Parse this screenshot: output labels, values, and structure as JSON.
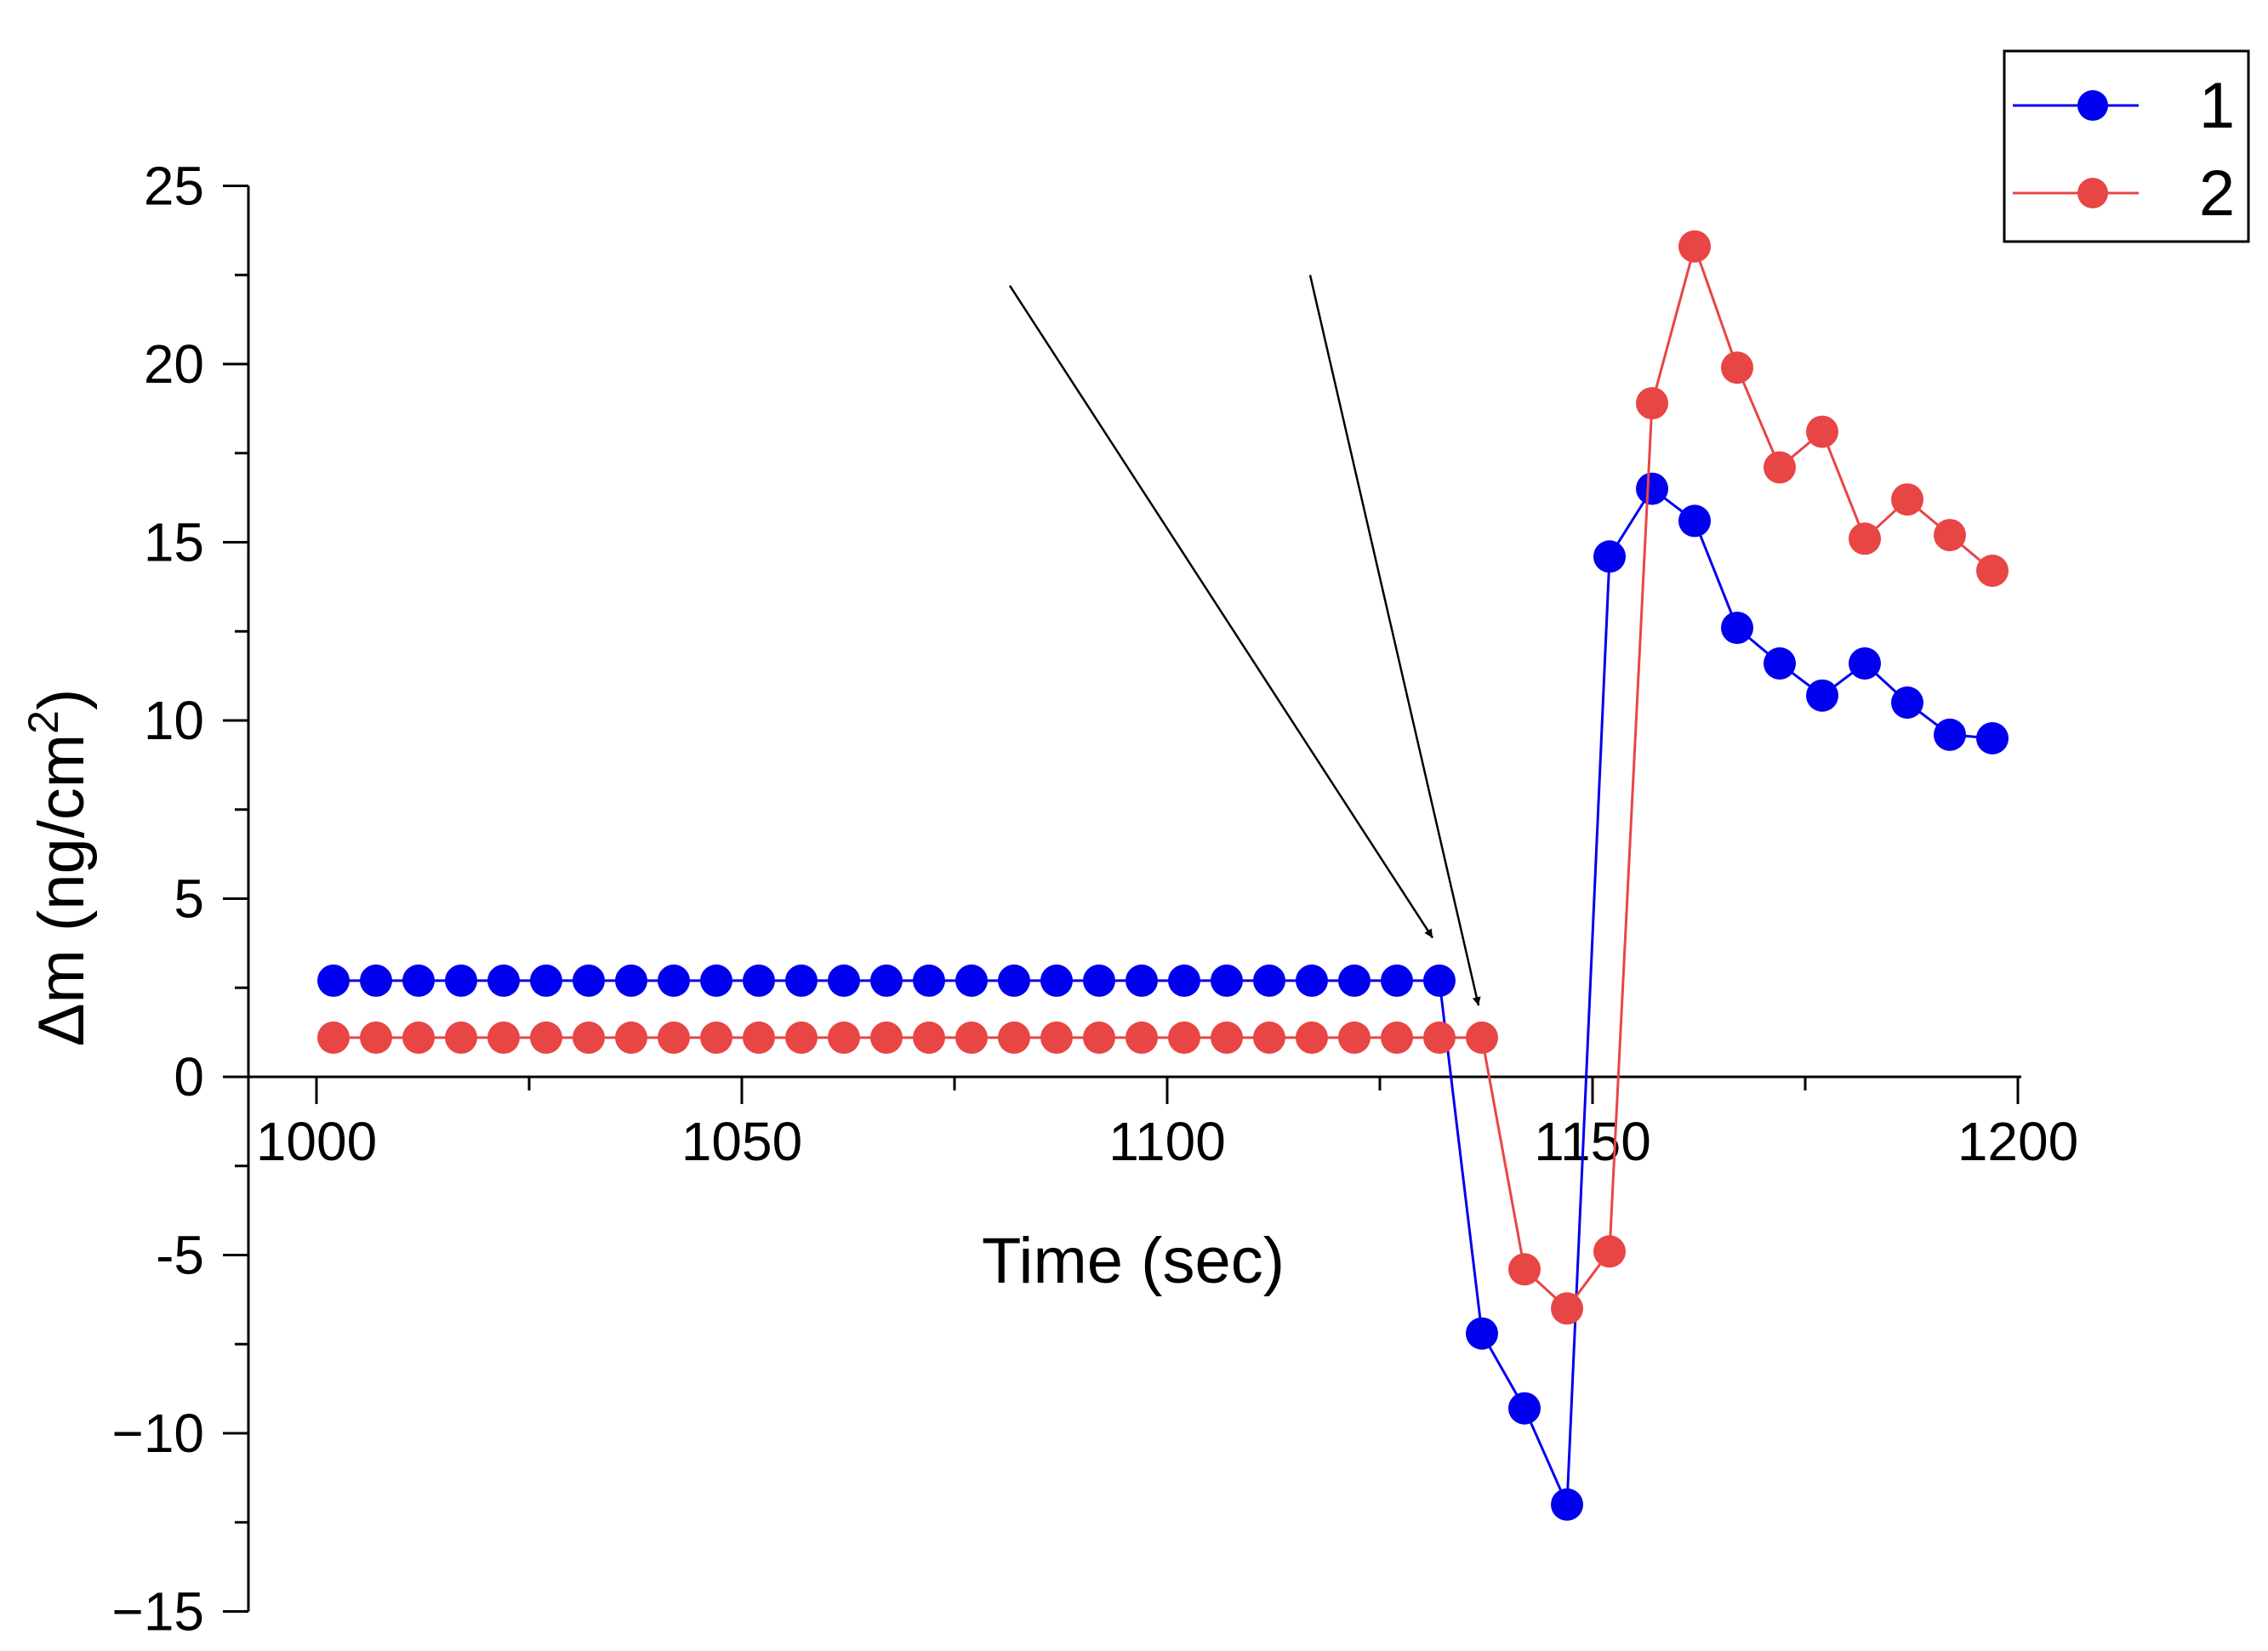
{
  "chart_data": {
    "type": "line",
    "title": "",
    "xlabel": "Time (sec)",
    "ylabel_main": "Δm (ng/cm",
    "ylabel_superscript": "2",
    "ylabel_close": ")",
    "xlim": [
      990,
      1200
    ],
    "ylim": [
      -15,
      25
    ],
    "x_ticks": [
      1000,
      1050,
      1100,
      1150,
      1200
    ],
    "x_tick_labels": [
      "1000",
      "1050",
      "1100",
      "1150",
      "1200"
    ],
    "y_ticks": [
      -15,
      -10,
      -5,
      0,
      5,
      10,
      15,
      20,
      25
    ],
    "y_tick_labels": [
      "−15",
      "−10",
      "-5",
      "0",
      "5",
      "10",
      "15",
      "20",
      "25"
    ],
    "legend_position": "top-right",
    "series": [
      {
        "name": "1",
        "color": "#0000ee",
        "x": [
          1002,
          1007,
          1012,
          1017,
          1022,
          1027,
          1032,
          1037,
          1042,
          1047,
          1052,
          1057,
          1062,
          1067,
          1072,
          1077,
          1082,
          1087,
          1092,
          1097,
          1102,
          1107,
          1112,
          1117,
          1122,
          1127,
          1132,
          1137,
          1142,
          1147,
          1152,
          1157,
          1162,
          1167,
          1172,
          1177,
          1182,
          1187,
          1192,
          1197
        ],
        "y": [
          2.7,
          2.7,
          2.7,
          2.7,
          2.7,
          2.7,
          2.7,
          2.7,
          2.7,
          2.7,
          2.7,
          2.7,
          2.7,
          2.7,
          2.7,
          2.7,
          2.7,
          2.7,
          2.7,
          2.7,
          2.7,
          2.7,
          2.7,
          2.7,
          2.7,
          2.7,
          2.7,
          -7.2,
          -9.3,
          -12.0,
          14.6,
          16.5,
          15.6,
          12.6,
          11.6,
          10.7,
          11.6,
          10.5,
          9.6,
          9.5
        ]
      },
      {
        "name": "2",
        "color": "#e84545",
        "x": [
          1002,
          1007,
          1012,
          1017,
          1022,
          1027,
          1032,
          1037,
          1042,
          1047,
          1052,
          1057,
          1062,
          1067,
          1072,
          1077,
          1082,
          1087,
          1092,
          1097,
          1102,
          1107,
          1112,
          1117,
          1122,
          1127,
          1132,
          1137,
          1142,
          1147,
          1152,
          1157,
          1162,
          1167,
          1172,
          1177,
          1182,
          1187,
          1192,
          1197
        ],
        "y": [
          1.1,
          1.1,
          1.1,
          1.1,
          1.1,
          1.1,
          1.1,
          1.1,
          1.1,
          1.1,
          1.1,
          1.1,
          1.1,
          1.1,
          1.1,
          1.1,
          1.1,
          1.1,
          1.1,
          1.1,
          1.1,
          1.1,
          1.1,
          1.1,
          1.1,
          1.1,
          1.1,
          1.1,
          -5.4,
          -6.5,
          -4.9,
          18.9,
          23.3,
          19.9,
          17.1,
          18.1,
          15.1,
          16.2,
          15.2,
          14.2
        ]
      }
    ],
    "annotations": [
      {
        "type": "arrow",
        "from": [
          1081.5,
          22.2
        ],
        "to": [
          1131.2,
          3.9
        ]
      },
      {
        "type": "arrow",
        "from": [
          1116.8,
          22.5
        ],
        "to": [
          1136.6,
          2.0
        ]
      }
    ]
  }
}
